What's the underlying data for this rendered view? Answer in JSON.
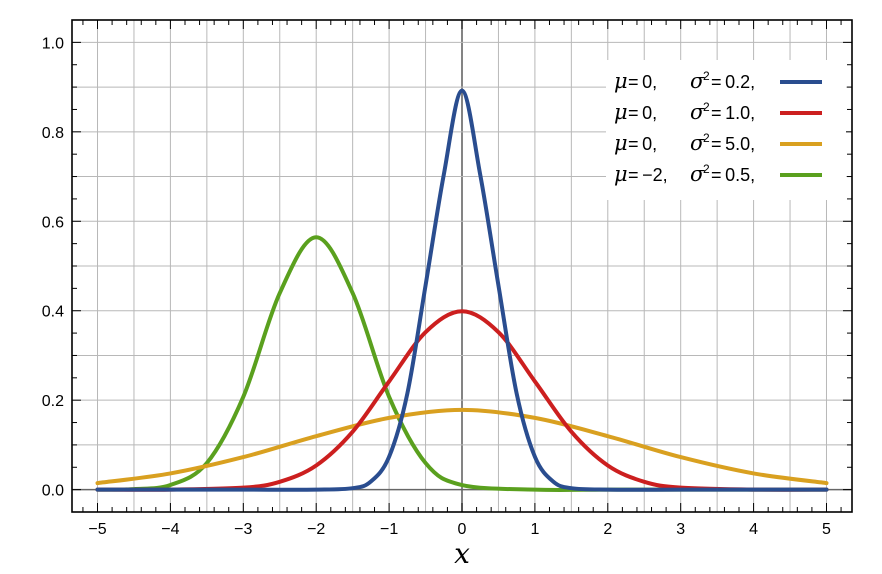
{
  "chart_data": {
    "type": "line",
    "title": "",
    "xlabel": "x",
    "ylabel": "",
    "xlim": [
      -5.35,
      5.35
    ],
    "ylim": [
      -0.05,
      1.05
    ],
    "xticks": [
      "−5",
      "−4",
      "−3",
      "−2",
      "−1",
      "0",
      "1",
      "2",
      "3",
      "4",
      "5"
    ],
    "xtick_values": [
      -5,
      -4,
      -3,
      -2,
      -1,
      0,
      1,
      2,
      3,
      4,
      5
    ],
    "yticks": [
      "0.0",
      "0.2",
      "0.4",
      "0.6",
      "0.8",
      "1.0"
    ],
    "ytick_values": [
      0.0,
      0.2,
      0.4,
      0.6,
      0.8,
      1.0
    ],
    "grid": true,
    "legend_position": "top-right",
    "series": [
      {
        "mu_label": "= 0,",
        "sigma_label": "= 0.2,",
        "color": "#2a4d8f",
        "x": [
          -5,
          -4,
          -3,
          -2,
          -1.5,
          -1.25,
          -1,
          -0.75,
          -0.5,
          -0.25,
          0,
          0.25,
          0.5,
          0.75,
          1,
          1.25,
          1.5,
          2,
          3,
          4,
          5
        ],
        "y": [
          0.0,
          0.0,
          0.0,
          0.0,
          0.0032,
          0.0182,
          0.0735,
          0.2147,
          0.4566,
          0.7041,
          0.8921,
          0.7041,
          0.4566,
          0.2147,
          0.0735,
          0.0182,
          0.0032,
          0.0,
          0.0,
          0.0,
          0.0
        ]
      },
      {
        "mu_label": "= 0,",
        "sigma_label": "= 1.0,",
        "color": "#cc1f1f",
        "x": [
          -5,
          -4,
          -3,
          -2.5,
          -2,
          -1.5,
          -1,
          -0.5,
          0,
          0.5,
          1,
          1.5,
          2,
          2.5,
          3,
          4,
          5
        ],
        "y": [
          0.0,
          0.0001,
          0.0044,
          0.0175,
          0.054,
          0.1295,
          0.242,
          0.3521,
          0.3989,
          0.3521,
          0.242,
          0.1295,
          0.054,
          0.0175,
          0.0044,
          0.0001,
          0.0
        ]
      },
      {
        "mu_label": "= 0,",
        "sigma_label": "= 5.0,",
        "color": "#d9a020",
        "x": [
          -5,
          -4,
          -3,
          -2,
          -1,
          0,
          1,
          2,
          3,
          4,
          5
        ],
        "y": [
          0.0146,
          0.0362,
          0.0727,
          0.1196,
          0.1604,
          0.1784,
          0.1604,
          0.1196,
          0.0727,
          0.0362,
          0.0146
        ]
      },
      {
        "mu_label": "= −2,",
        "sigma_label": "= 0.5,",
        "color": "#5aa01e",
        "x": [
          -5,
          -4.5,
          -4,
          -3.5,
          -3,
          -2.5,
          -2,
          -1.5,
          -1,
          -0.5,
          0,
          1,
          2,
          3,
          4,
          5
        ],
        "y": [
          0.0,
          0.0011,
          0.0103,
          0.0595,
          0.2076,
          0.4394,
          0.5642,
          0.4394,
          0.2076,
          0.0595,
          0.0103,
          0.0,
          0.0,
          0.0,
          0.0,
          0.0
        ]
      }
    ]
  }
}
